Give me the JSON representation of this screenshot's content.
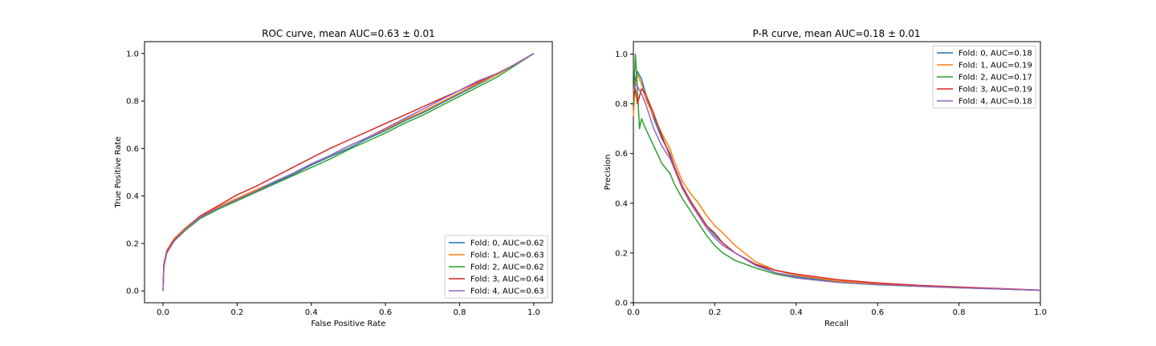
{
  "colors": {
    "fold0": "#1f77b4",
    "fold1": "#ff7f0e",
    "fold2": "#2ca02c",
    "fold3": "#d62728",
    "fold4": "#9467bd"
  },
  "chart_data": [
    {
      "type": "line",
      "title": "ROC curve, mean AUC=0.63 ± 0.01",
      "xlabel": "False Positive Rate",
      "ylabel": "True Positive Rate",
      "xlim": [
        -0.05,
        1.05
      ],
      "ylim": [
        -0.05,
        1.05
      ],
      "xticks": [
        "0.0",
        "0.2",
        "0.4",
        "0.6",
        "0.8",
        "1.0"
      ],
      "yticks": [
        "0.0",
        "0.2",
        "0.4",
        "0.6",
        "0.8",
        "1.0"
      ],
      "legend_position": "lower-right",
      "series": [
        {
          "name": "Fold: 0, AUC=0.62",
          "color": "fold0",
          "x": [
            0,
            0.002,
            0.01,
            0.03,
            0.06,
            0.1,
            0.15,
            0.2,
            0.25,
            0.3,
            0.35,
            0.4,
            0.45,
            0.5,
            0.55,
            0.6,
            0.65,
            0.7,
            0.75,
            0.8,
            0.85,
            0.9,
            0.95,
            1.0
          ],
          "y": [
            0,
            0.1,
            0.16,
            0.21,
            0.26,
            0.31,
            0.35,
            0.385,
            0.42,
            0.455,
            0.49,
            0.53,
            0.565,
            0.6,
            0.64,
            0.675,
            0.715,
            0.75,
            0.79,
            0.83,
            0.87,
            0.91,
            0.955,
            1.0
          ]
        },
        {
          "name": "Fold: 1, AUC=0.63",
          "color": "fold1",
          "x": [
            0,
            0.002,
            0.01,
            0.03,
            0.06,
            0.1,
            0.15,
            0.2,
            0.25,
            0.3,
            0.35,
            0.4,
            0.45,
            0.5,
            0.55,
            0.6,
            0.65,
            0.7,
            0.75,
            0.8,
            0.85,
            0.9,
            0.95,
            1.0
          ],
          "y": [
            0,
            0.11,
            0.17,
            0.22,
            0.265,
            0.315,
            0.355,
            0.39,
            0.425,
            0.46,
            0.495,
            0.535,
            0.57,
            0.61,
            0.645,
            0.68,
            0.72,
            0.755,
            0.795,
            0.835,
            0.875,
            0.91,
            0.955,
            1.0
          ]
        },
        {
          "name": "Fold: 2, AUC=0.62",
          "color": "fold2",
          "x": [
            0,
            0.002,
            0.01,
            0.03,
            0.06,
            0.1,
            0.15,
            0.2,
            0.25,
            0.3,
            0.35,
            0.4,
            0.45,
            0.5,
            0.55,
            0.6,
            0.65,
            0.7,
            0.75,
            0.8,
            0.85,
            0.9,
            0.95,
            1.0
          ],
          "y": [
            0,
            0.1,
            0.16,
            0.21,
            0.255,
            0.305,
            0.345,
            0.38,
            0.415,
            0.45,
            0.485,
            0.52,
            0.555,
            0.595,
            0.63,
            0.665,
            0.705,
            0.74,
            0.78,
            0.82,
            0.86,
            0.9,
            0.95,
            1.0
          ]
        },
        {
          "name": "Fold: 3, AUC=0.64",
          "color": "fold3",
          "x": [
            0,
            0.002,
            0.01,
            0.03,
            0.06,
            0.1,
            0.15,
            0.2,
            0.25,
            0.3,
            0.35,
            0.4,
            0.45,
            0.5,
            0.55,
            0.6,
            0.65,
            0.7,
            0.75,
            0.8,
            0.85,
            0.9,
            0.95,
            1.0
          ],
          "y": [
            0,
            0.11,
            0.165,
            0.215,
            0.26,
            0.315,
            0.36,
            0.405,
            0.44,
            0.48,
            0.52,
            0.56,
            0.6,
            0.635,
            0.67,
            0.705,
            0.74,
            0.775,
            0.81,
            0.845,
            0.88,
            0.915,
            0.955,
            1.0
          ]
        },
        {
          "name": "Fold: 4, AUC=0.63",
          "color": "fold4",
          "x": [
            0,
            0.002,
            0.01,
            0.03,
            0.06,
            0.1,
            0.15,
            0.2,
            0.25,
            0.3,
            0.35,
            0.4,
            0.45,
            0.5,
            0.55,
            0.6,
            0.65,
            0.7,
            0.75,
            0.8,
            0.85,
            0.9,
            0.95,
            1.0
          ],
          "y": [
            0,
            0.1,
            0.16,
            0.21,
            0.26,
            0.31,
            0.35,
            0.385,
            0.42,
            0.46,
            0.495,
            0.535,
            0.57,
            0.61,
            0.645,
            0.685,
            0.725,
            0.765,
            0.805,
            0.845,
            0.885,
            0.915,
            0.955,
            1.0
          ]
        }
      ]
    },
    {
      "type": "line",
      "title": "P-R curve, mean AUC=0.18 ± 0.01",
      "xlabel": "Recall",
      "ylabel": "Precision",
      "xlim": [
        0,
        1
      ],
      "ylim": [
        0,
        1.05
      ],
      "xticks": [
        "0.0",
        "0.2",
        "0.4",
        "0.6",
        "0.8",
        "1.0"
      ],
      "yticks": [
        "0.0",
        "0.2",
        "0.4",
        "0.6",
        "0.8",
        "1.0"
      ],
      "legend_position": "top-right",
      "series": [
        {
          "name": "Fold: 0, AUC=0.18",
          "color": "fold0",
          "x": [
            0.0,
            0.005,
            0.01,
            0.02,
            0.03,
            0.05,
            0.07,
            0.09,
            0.1,
            0.12,
            0.14,
            0.16,
            0.18,
            0.2,
            0.22,
            0.25,
            0.3,
            0.35,
            0.4,
            0.5,
            0.6,
            0.7,
            0.8,
            0.9,
            1.0
          ],
          "y": [
            0.85,
            0.9,
            0.93,
            0.9,
            0.84,
            0.74,
            0.66,
            0.6,
            0.55,
            0.47,
            0.41,
            0.36,
            0.31,
            0.27,
            0.24,
            0.2,
            0.155,
            0.12,
            0.105,
            0.085,
            0.075,
            0.067,
            0.062,
            0.056,
            0.05
          ]
        },
        {
          "name": "Fold: 1, AUC=0.19",
          "color": "fold1",
          "x": [
            0.0,
            0.005,
            0.01,
            0.02,
            0.03,
            0.05,
            0.07,
            0.09,
            0.1,
            0.12,
            0.14,
            0.16,
            0.18,
            0.2,
            0.22,
            0.25,
            0.3,
            0.35,
            0.4,
            0.5,
            0.6,
            0.7,
            0.8,
            0.9,
            1.0
          ],
          "y": [
            0.75,
            0.88,
            0.92,
            0.88,
            0.82,
            0.75,
            0.68,
            0.62,
            0.57,
            0.49,
            0.44,
            0.4,
            0.35,
            0.31,
            0.28,
            0.23,
            0.165,
            0.13,
            0.11,
            0.088,
            0.077,
            0.068,
            0.062,
            0.056,
            0.05
          ]
        },
        {
          "name": "Fold: 2, AUC=0.17",
          "color": "fold2",
          "x": [
            0.0,
            0.005,
            0.01,
            0.015,
            0.02,
            0.03,
            0.05,
            0.07,
            0.09,
            0.1,
            0.12,
            0.14,
            0.16,
            0.18,
            0.2,
            0.22,
            0.25,
            0.3,
            0.35,
            0.4,
            0.5,
            0.6,
            0.7,
            0.8,
            0.9,
            1.0
          ],
          "y": [
            0.8,
            1.0,
            0.85,
            0.7,
            0.74,
            0.7,
            0.63,
            0.56,
            0.52,
            0.48,
            0.42,
            0.37,
            0.32,
            0.27,
            0.23,
            0.2,
            0.17,
            0.14,
            0.115,
            0.1,
            0.082,
            0.072,
            0.066,
            0.06,
            0.055,
            0.05
          ]
        },
        {
          "name": "Fold: 3, AUC=0.19",
          "color": "fold3",
          "x": [
            0.0,
            0.005,
            0.01,
            0.02,
            0.03,
            0.05,
            0.07,
            0.09,
            0.1,
            0.12,
            0.14,
            0.16,
            0.18,
            0.2,
            0.22,
            0.25,
            0.3,
            0.35,
            0.4,
            0.5,
            0.6,
            0.7,
            0.8,
            0.9,
            1.0
          ],
          "y": [
            0.82,
            0.86,
            0.8,
            0.86,
            0.84,
            0.76,
            0.67,
            0.59,
            0.55,
            0.47,
            0.41,
            0.36,
            0.31,
            0.28,
            0.24,
            0.2,
            0.155,
            0.13,
            0.115,
            0.093,
            0.08,
            0.07,
            0.063,
            0.057,
            0.051
          ]
        },
        {
          "name": "Fold: 4, AUC=0.18",
          "color": "fold4",
          "x": [
            0.0,
            0.005,
            0.01,
            0.02,
            0.03,
            0.05,
            0.07,
            0.09,
            0.1,
            0.12,
            0.14,
            0.16,
            0.18,
            0.2,
            0.22,
            0.25,
            0.3,
            0.35,
            0.4,
            0.5,
            0.6,
            0.7,
            0.8,
            0.9,
            1.0
          ],
          "y": [
            0.85,
            0.88,
            0.87,
            0.84,
            0.8,
            0.7,
            0.63,
            0.58,
            0.54,
            0.46,
            0.4,
            0.35,
            0.3,
            0.26,
            0.23,
            0.2,
            0.15,
            0.12,
            0.1,
            0.082,
            0.073,
            0.066,
            0.06,
            0.055,
            0.05
          ]
        }
      ]
    }
  ]
}
